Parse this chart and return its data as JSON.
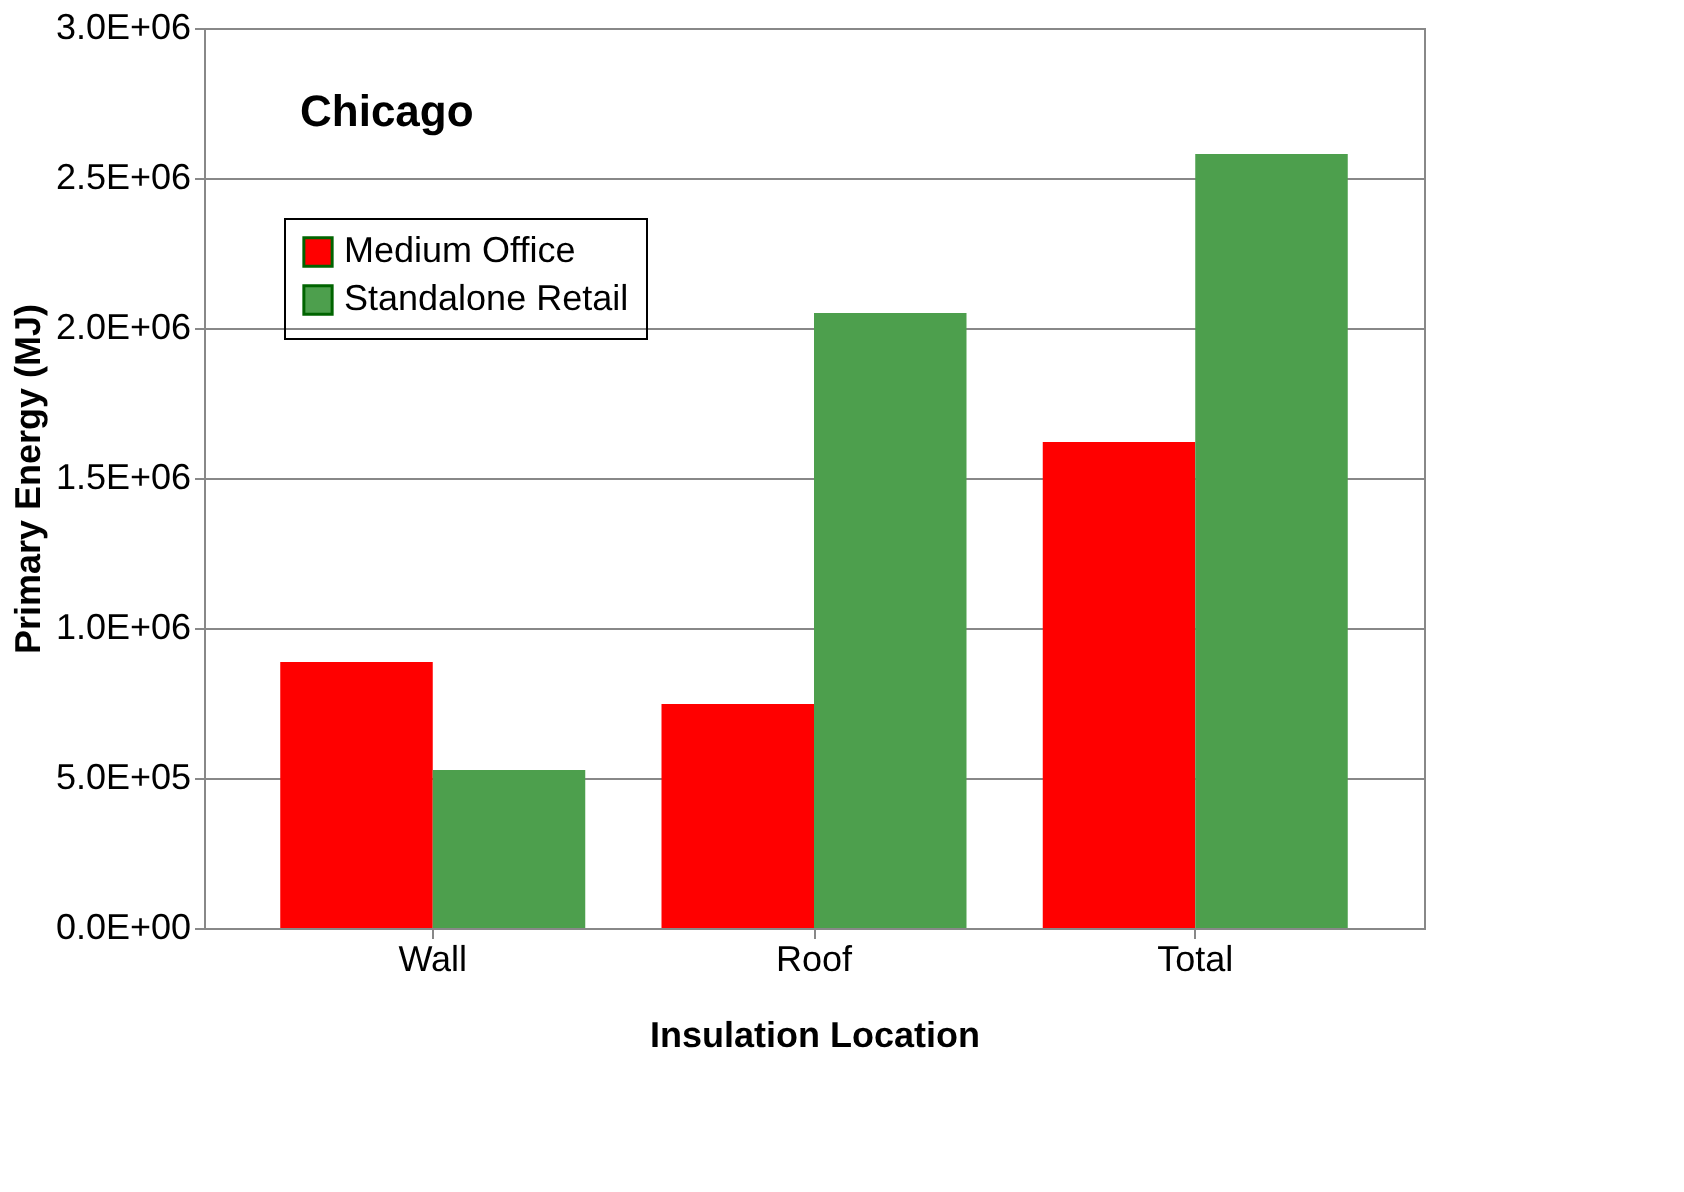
{
  "chart_data": {
    "type": "bar",
    "xlabel": "Insulation Location",
    "ylabel": "Primary Energy (MJ)",
    "categories": [
      "Wall",
      "Roof",
      "Total"
    ],
    "series": [
      {
        "name": "Medium Office",
        "color": "#ff0000",
        "values": [
          887000,
          747000,
          1620000
        ]
      },
      {
        "name": "Standalone Retail",
        "color": "#4d9f4d",
        "values": [
          527000,
          2050000,
          2580000
        ]
      }
    ],
    "ylim": [
      0,
      3000000
    ],
    "yticks": [
      {
        "value": 0,
        "label": "0.0E+00"
      },
      {
        "value": 500000,
        "label": "5.0E+05"
      },
      {
        "value": 1000000,
        "label": "1.0E+06"
      },
      {
        "value": 1500000,
        "label": "1.5E+06"
      },
      {
        "value": 2000000,
        "label": "2.0E+06"
      },
      {
        "value": 2500000,
        "label": "2.5E+06"
      },
      {
        "value": 3000000,
        "label": "3.0E+06"
      }
    ],
    "annotations": [
      "Chicago"
    ],
    "grid": "y",
    "legend": "top left"
  }
}
